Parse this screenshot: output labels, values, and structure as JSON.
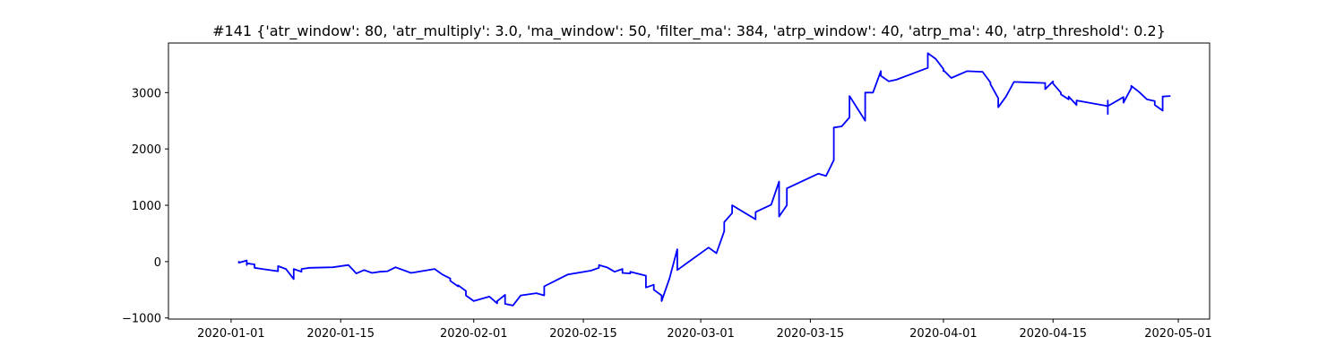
{
  "chart_data": {
    "type": "line",
    "title": "#141 {'atr_window': 80, 'atr_multiply': 3.0, 'ma_window': 50, 'filter_ma': 384, 'atrp_window': 40, 'atrp_ma': 40, 'atrp_threshold': 0.2}",
    "xlabel": "",
    "ylabel": "",
    "grid": false,
    "legend": "none",
    "line_color": "#0000ff",
    "xlim": [
      "2019-12-24",
      "2020-05-05"
    ],
    "ylim": [
      -1020,
      3880
    ],
    "x_ticks": [
      {
        "date": "2020-01-01",
        "label": "2020-01-01"
      },
      {
        "date": "2020-01-15",
        "label": "2020-01-15"
      },
      {
        "date": "2020-02-01",
        "label": "2020-02-01"
      },
      {
        "date": "2020-02-15",
        "label": "2020-02-15"
      },
      {
        "date": "2020-03-01",
        "label": "2020-03-01"
      },
      {
        "date": "2020-03-15",
        "label": "2020-03-15"
      },
      {
        "date": "2020-04-01",
        "label": "2020-04-01"
      },
      {
        "date": "2020-04-15",
        "label": "2020-04-15"
      },
      {
        "date": "2020-05-01",
        "label": "2020-05-01"
      }
    ],
    "y_ticks": [
      {
        "value": -1000,
        "label": "−1000"
      },
      {
        "value": 0,
        "label": "0"
      },
      {
        "value": 1000,
        "label": "1000"
      },
      {
        "value": 2000,
        "label": "2000"
      },
      {
        "value": 3000,
        "label": "3000"
      }
    ],
    "x": [
      "2020-01-02",
      "2020-01-02",
      "2020-01-03",
      "2020-01-03",
      "2020-01-03",
      "2020-01-04",
      "2020-01-04",
      "2020-01-05",
      "2020-01-07",
      "2020-01-07",
      "2020-01-08",
      "2020-01-09",
      "2020-01-09",
      "2020-01-10",
      "2020-01-10",
      "2020-01-11",
      "2020-01-14",
      "2020-01-16",
      "2020-01-17",
      "2020-01-18",
      "2020-01-19",
      "2020-01-20",
      "2020-01-21",
      "2020-01-22",
      "2020-01-24",
      "2020-01-27",
      "2020-01-28",
      "2020-01-29",
      "2020-01-29",
      "2020-01-30",
      "2020-01-30",
      "2020-01-31",
      "2020-01-31",
      "2020-02-01",
      "2020-02-03",
      "2020-02-04",
      "2020-02-04",
      "2020-02-05",
      "2020-02-05",
      "2020-02-06",
      "2020-02-07",
      "2020-02-09",
      "2020-02-10",
      "2020-02-10",
      "2020-02-10",
      "2020-02-12",
      "2020-02-13",
      "2020-02-16",
      "2020-02-17",
      "2020-02-17",
      "2020-02-18",
      "2020-02-19",
      "2020-02-20",
      "2020-02-20",
      "2020-02-21",
      "2020-02-21",
      "2020-02-23",
      "2020-02-23",
      "2020-02-23",
      "2020-02-24",
      "2020-02-24",
      "2020-02-25",
      "2020-02-25",
      "2020-02-26",
      "2020-02-27",
      "2020-02-27",
      "2020-03-02",
      "2020-03-03",
      "2020-03-04",
      "2020-03-04",
      "2020-03-05",
      "2020-03-05",
      "2020-03-05",
      "2020-03-05",
      "2020-03-08",
      "2020-03-08",
      "2020-03-10",
      "2020-03-11",
      "2020-03-11",
      "2020-03-11",
      "2020-03-12",
      "2020-03-12",
      "2020-03-16",
      "2020-03-17",
      "2020-03-18",
      "2020-03-18",
      "2020-03-19",
      "2020-03-20",
      "2020-03-20",
      "2020-03-22",
      "2020-03-22",
      "2020-03-23",
      "2020-03-24",
      "2020-03-24",
      "2020-03-25",
      "2020-03-26",
      "2020-03-30",
      "2020-03-30",
      "2020-03-31",
      "2020-04-01",
      "2020-04-01",
      "2020-04-01",
      "2020-04-02",
      "2020-04-04",
      "2020-04-06",
      "2020-04-07",
      "2020-04-07",
      "2020-04-08",
      "2020-04-08",
      "2020-04-09",
      "2020-04-10",
      "2020-04-14",
      "2020-04-14",
      "2020-04-15",
      "2020-04-15",
      "2020-04-16",
      "2020-04-16",
      "2020-04-17",
      "2020-04-17",
      "2020-04-18",
      "2020-04-18",
      "2020-04-22",
      "2020-04-22",
      "2020-04-22",
      "2020-04-22",
      "2020-04-24",
      "2020-04-24",
      "2020-04-25",
      "2020-04-25",
      "2020-04-26",
      "2020-04-27",
      "2020-04-28",
      "2020-04-28",
      "2020-04-29",
      "2020-04-29",
      "2020-04-30"
    ],
    "y": [
      10,
      -20,
      20,
      -60,
      -30,
      -50,
      -110,
      -130,
      -170,
      -80,
      -130,
      -310,
      -130,
      -180,
      -130,
      -110,
      -100,
      -60,
      -210,
      -150,
      -200,
      -180,
      -170,
      -100,
      -200,
      -130,
      -230,
      -300,
      -340,
      -440,
      -420,
      -520,
      -600,
      -700,
      -620,
      -740,
      -700,
      -590,
      -750,
      -780,
      -600,
      -560,
      -600,
      -530,
      -440,
      -300,
      -230,
      -160,
      -110,
      -60,
      -100,
      -180,
      -130,
      -200,
      -210,
      -180,
      -250,
      -350,
      -460,
      -410,
      -500,
      -600,
      -700,
      -300,
      220,
      -150,
      250,
      150,
      540,
      700,
      860,
      970,
      920,
      1000,
      750,
      880,
      1010,
      1420,
      1100,
      800,
      1000,
      1300,
      1560,
      1520,
      1800,
      2380,
      2400,
      2560,
      2940,
      2500,
      3000,
      3000,
      3380,
      3300,
      3200,
      3230,
      3440,
      3700,
      3600,
      3420,
      3380,
      3400,
      3260,
      3380,
      3370,
      3180,
      3150,
      2900,
      2740,
      2930,
      3190,
      3170,
      3060,
      3200,
      3160,
      3000,
      2970,
      2880,
      2930,
      2780,
      2860,
      2760,
      2860,
      2620,
      2760,
      2920,
      2820,
      3080,
      3120,
      3010,
      2880,
      2850,
      2780,
      2680,
      2930,
      2940
    ]
  }
}
